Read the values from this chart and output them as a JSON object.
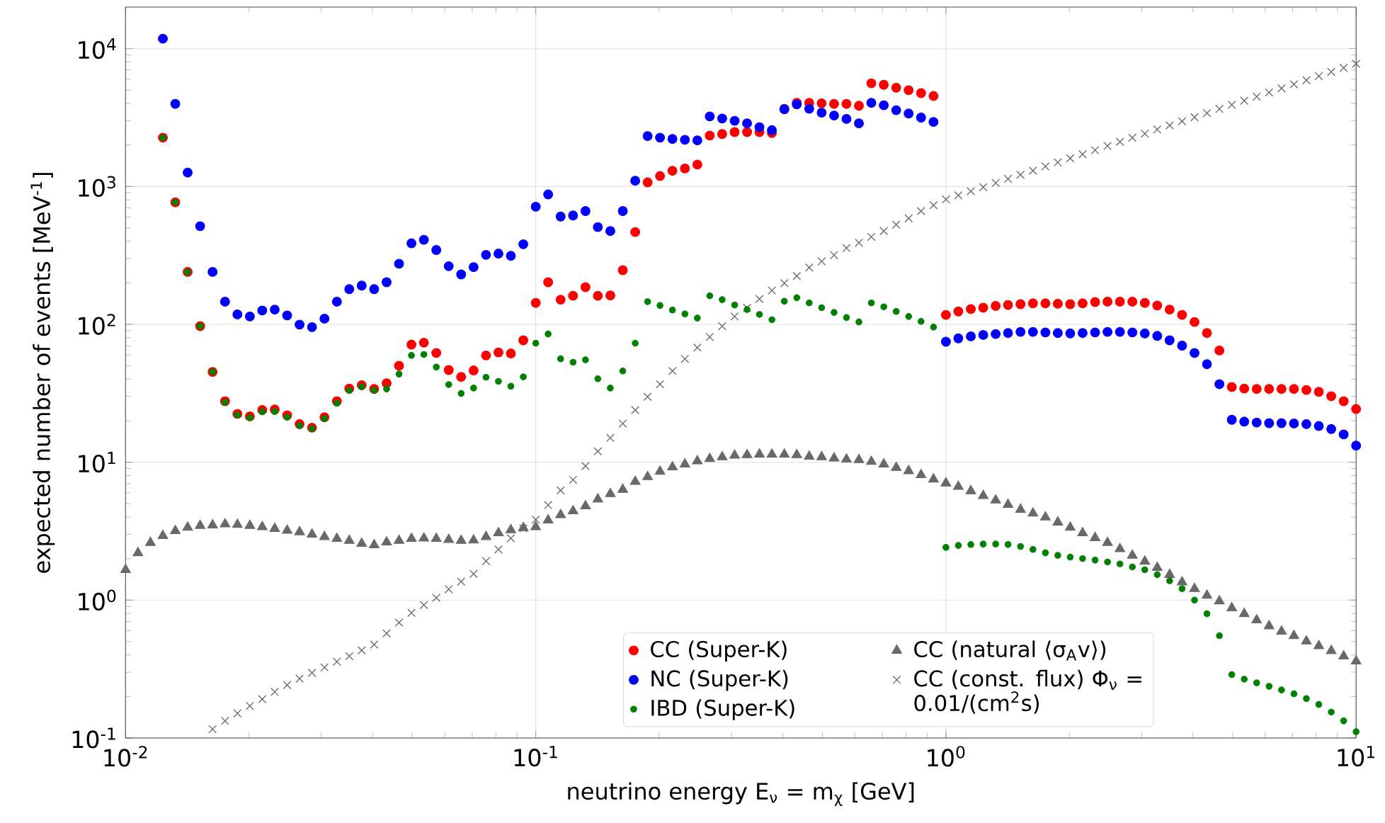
{
  "chart_data": {
    "type": "scatter",
    "xlabel": "neutrino energy E$_{ν}$ = m$_{χ}$ [GeV]",
    "ylabel": "expected number of events [MeV$^{-1}$]",
    "log": "xy",
    "grid": true,
    "legend": "bottom",
    "xlim": [
      0.01,
      10
    ],
    "ylim": [
      0.1,
      20000
    ],
    "xticks": [
      {
        "value": 0.01,
        "label": "10$^{-2}$"
      },
      {
        "value": 0.1,
        "label": "10$^{-1}$"
      },
      {
        "value": 1,
        "label": "10$^{0}$"
      },
      {
        "value": 10,
        "label": "10$^{1}$"
      }
    ],
    "yticks": [
      {
        "value": 0.1,
        "label": "10$^{-1}$"
      },
      {
        "value": 1,
        "label": "10$^{0}$"
      },
      {
        "value": 10,
        "label": "10$^{1}$"
      },
      {
        "value": 100,
        "label": "10$^{2}$"
      },
      {
        "value": 1000,
        "label": "10$^{3}$"
      },
      {
        "value": 10000,
        "label": "10$^{4}$"
      }
    ],
    "series": [
      {
        "name": "CC (Super-K)",
        "color": "#ff0000",
        "marker": "circle",
        "x": [
          0.01233,
          0.01322,
          0.01417,
          0.0152,
          0.0163,
          0.01748,
          0.01874,
          0.02009,
          0.02154,
          0.0231,
          0.02477,
          0.02656,
          0.02848,
          0.03054,
          0.03275,
          0.03511,
          0.03765,
          0.04037,
          0.04329,
          0.04642,
          0.04977,
          0.05337,
          0.05722,
          0.06136,
          0.06579,
          0.07055,
          0.07565,
          0.08111,
          0.08697,
          0.09326,
          0.1,
          0.1072,
          0.115,
          0.1233,
          0.1322,
          0.1417,
          0.152,
          0.163,
          0.1748,
          0.1874,
          0.2009,
          0.2154,
          0.231,
          0.2477,
          0.2656,
          0.2848,
          0.3054,
          0.3275,
          0.3511,
          0.3765,
          0.4037,
          0.4329,
          0.4642,
          0.4977,
          0.5337,
          0.5722,
          0.6136,
          0.6579,
          0.7055,
          0.7565,
          0.8111,
          0.8697,
          0.9326,
          1.0,
          1.072,
          1.15,
          1.233,
          1.322,
          1.417,
          1.52,
          1.63,
          1.748,
          1.874,
          2.009,
          2.154,
          2.31,
          2.477,
          2.656,
          2.848,
          3.054,
          3.275,
          3.511,
          3.765,
          4.037,
          4.329,
          4.642,
          4.977,
          5.337,
          5.722,
          6.136,
          6.579,
          7.055,
          7.565,
          8.111,
          8.697,
          9.326,
          10.0
        ],
        "values": [
          2260,
          767,
          240,
          97,
          45.2,
          27.7,
          22.4,
          21.5,
          23.9,
          24.1,
          21.9,
          18.9,
          17.8,
          21.2,
          27.7,
          34.2,
          36.2,
          34.0,
          37.4,
          50.1,
          71.3,
          73.6,
          62.0,
          46.6,
          41.6,
          46.3,
          59.5,
          62.5,
          61.5,
          76.6,
          143,
          202,
          151,
          161,
          186,
          161,
          162,
          247,
          467,
          1070,
          1190,
          1300,
          1350,
          1440,
          2340,
          2400,
          2480,
          2480,
          2480,
          2440,
          3660,
          4040,
          4040,
          4010,
          3970,
          3970,
          3850,
          5600,
          5460,
          5200,
          4990,
          4750,
          4530,
          117,
          124,
          129,
          132,
          136,
          138,
          140,
          142,
          142,
          141,
          140,
          142,
          145,
          146,
          146,
          146,
          143,
          137,
          128,
          117,
          104,
          86.5,
          64.6,
          35.1,
          34.2,
          34.0,
          34.0,
          34.0,
          34.0,
          33.4,
          32.4,
          30.1,
          27.7,
          24.3
        ]
      },
      {
        "name": "NC (Super-K)",
        "color": "#0000ff",
        "marker": "circle",
        "x": [
          0.01233,
          0.01322,
          0.01417,
          0.0152,
          0.0163,
          0.01748,
          0.01874,
          0.02009,
          0.02154,
          0.0231,
          0.02477,
          0.02656,
          0.02848,
          0.03054,
          0.03275,
          0.03511,
          0.03765,
          0.04037,
          0.04329,
          0.04642,
          0.04977,
          0.05337,
          0.05722,
          0.06136,
          0.06579,
          0.07055,
          0.07565,
          0.08111,
          0.08697,
          0.09326,
          0.1,
          0.1072,
          0.115,
          0.1233,
          0.1322,
          0.1417,
          0.152,
          0.163,
          0.1748,
          0.1874,
          0.2009,
          0.2154,
          0.231,
          0.2477,
          0.2656,
          0.2848,
          0.3054,
          0.3275,
          0.3511,
          0.3765,
          0.4037,
          0.4329,
          0.4642,
          0.4977,
          0.5337,
          0.5722,
          0.6136,
          0.6579,
          0.7055,
          0.7565,
          0.8111,
          0.8697,
          0.9326,
          1.0,
          1.072,
          1.15,
          1.233,
          1.322,
          1.417,
          1.52,
          1.63,
          1.748,
          1.874,
          2.009,
          2.154,
          2.31,
          2.477,
          2.656,
          2.848,
          3.054,
          3.275,
          3.511,
          3.765,
          4.037,
          4.329,
          4.642,
          4.977,
          5.337,
          5.722,
          6.136,
          6.579,
          7.055,
          7.565,
          8.111,
          8.697,
          9.326,
          10.0
        ],
        "values": [
          11800,
          3970,
          1260,
          515,
          240,
          146,
          118,
          114,
          126,
          128,
          116,
          99.5,
          95.5,
          110,
          146,
          180,
          191,
          180,
          202,
          275,
          387,
          410,
          346,
          264,
          230,
          260,
          319,
          326,
          314,
          381,
          713,
          875,
          605,
          616,
          663,
          507,
          475,
          663,
          1100,
          2320,
          2260,
          2210,
          2180,
          2160,
          3220,
          3110,
          2990,
          2870,
          2690,
          2560,
          3630,
          3940,
          3660,
          3430,
          3270,
          3090,
          2870,
          4040,
          3880,
          3570,
          3380,
          3160,
          2940,
          74.8,
          79.1,
          81.8,
          83.8,
          85.1,
          86.5,
          88.1,
          88.1,
          87.3,
          86.5,
          85.9,
          86.5,
          87.3,
          88.1,
          88.1,
          87.3,
          85.9,
          82.4,
          76.6,
          70.1,
          62.0,
          51.4,
          36.8,
          20.3,
          19.7,
          19.4,
          19.2,
          19.2,
          19.1,
          18.9,
          18.3,
          17.4,
          15.9,
          13.2
        ]
      },
      {
        "name": "IBD (Super-K)",
        "color": "#008000",
        "marker": "circle",
        "x": [
          0.01233,
          0.01322,
          0.01417,
          0.0152,
          0.0163,
          0.01748,
          0.01874,
          0.02009,
          0.02154,
          0.0231,
          0.02477,
          0.02656,
          0.02848,
          0.03054,
          0.03275,
          0.03511,
          0.03765,
          0.04037,
          0.04329,
          0.04642,
          0.04977,
          0.05337,
          0.05722,
          0.06136,
          0.06579,
          0.07055,
          0.07565,
          0.08111,
          0.08697,
          0.09326,
          0.1,
          0.1072,
          0.115,
          0.1233,
          0.1322,
          0.1417,
          0.152,
          0.163,
          0.1748,
          0.1874,
          0.2009,
          0.2154,
          0.231,
          0.2477,
          0.2656,
          0.2848,
          0.3054,
          0.3275,
          0.3511,
          0.3765,
          0.4037,
          0.4329,
          0.4642,
          0.4977,
          0.5337,
          0.5722,
          0.6136,
          0.6579,
          0.7055,
          0.7565,
          0.8111,
          0.8697,
          0.9326,
          1.0,
          1.072,
          1.15,
          1.233,
          1.322,
          1.417,
          1.52,
          1.63,
          1.748,
          1.874,
          2.009,
          2.154,
          2.31,
          2.477,
          2.656,
          2.848,
          3.054,
          3.275,
          3.511,
          3.765,
          4.037,
          4.329,
          4.642,
          4.977,
          5.337,
          5.722,
          6.136,
          6.579,
          7.055,
          7.565,
          8.111,
          8.697,
          9.326,
          10.0
        ],
        "values": [
          2260,
          767,
          240,
          97,
          45.2,
          27.2,
          22.0,
          21.0,
          23.2,
          23.3,
          21.2,
          18.4,
          17.5,
          20.7,
          26.8,
          33.1,
          35.3,
          33.1,
          34.0,
          43.6,
          59.5,
          60.5,
          49.0,
          36.6,
          31.5,
          34.5,
          41.3,
          38.6,
          35.6,
          41.6,
          73.0,
          85.1,
          56.2,
          53.1,
          55.3,
          40.3,
          34.5,
          45.9,
          73.0,
          146,
          137,
          127,
          119,
          111,
          161,
          151,
          138,
          128,
          118,
          108,
          147,
          156,
          143,
          132,
          122,
          112,
          104,
          143,
          134,
          124,
          114,
          105,
          95.5,
          2.41,
          2.49,
          2.53,
          2.55,
          2.55,
          2.53,
          2.45,
          2.33,
          2.2,
          2.11,
          2.05,
          2.0,
          1.95,
          1.89,
          1.83,
          1.74,
          1.66,
          1.53,
          1.38,
          1.21,
          1.0,
          0.796,
          0.552,
          0.288,
          0.267,
          0.251,
          0.237,
          0.223,
          0.209,
          0.193,
          0.175,
          0.154,
          0.133,
          0.111
        ]
      },
      {
        "name": "CC (natural ⟨σ$_{A}$v⟩)",
        "color": "#696969",
        "marker": "triangle",
        "x": [
          0.01,
          0.01072,
          0.0115,
          0.01233,
          0.01322,
          0.01417,
          0.0152,
          0.0163,
          0.01748,
          0.01874,
          0.02009,
          0.02154,
          0.0231,
          0.02477,
          0.02656,
          0.02848,
          0.03054,
          0.03275,
          0.03511,
          0.03765,
          0.04037,
          0.04329,
          0.04642,
          0.04977,
          0.05337,
          0.05722,
          0.06136,
          0.06579,
          0.07055,
          0.07565,
          0.08111,
          0.08697,
          0.09326,
          0.1,
          0.1072,
          0.115,
          0.1233,
          0.1322,
          0.1417,
          0.152,
          0.163,
          0.1748,
          0.1874,
          0.2009,
          0.2154,
          0.231,
          0.2477,
          0.2656,
          0.2848,
          0.3054,
          0.3275,
          0.3511,
          0.3765,
          0.4037,
          0.4329,
          0.4642,
          0.4977,
          0.5337,
          0.5722,
          0.6136,
          0.6579,
          0.7055,
          0.7565,
          0.8111,
          0.8697,
          0.9326,
          1.0,
          1.072,
          1.15,
          1.233,
          1.322,
          1.417,
          1.52,
          1.63,
          1.748,
          1.874,
          2.009,
          2.154,
          2.31,
          2.477,
          2.656,
          2.848,
          3.054,
          3.275,
          3.511,
          3.765,
          4.037,
          4.329,
          4.642,
          4.977,
          5.337,
          5.722,
          6.136,
          6.579,
          7.055,
          7.565,
          8.111,
          8.697,
          9.326,
          10.0
        ],
        "values": [
          1.66,
          2.2,
          2.61,
          2.93,
          3.18,
          3.36,
          3.47,
          3.5,
          3.56,
          3.53,
          3.47,
          3.39,
          3.3,
          3.2,
          3.12,
          3.0,
          2.88,
          2.79,
          2.7,
          2.57,
          2.51,
          2.63,
          2.7,
          2.79,
          2.81,
          2.79,
          2.74,
          2.7,
          2.72,
          2.88,
          3.07,
          3.23,
          3.34,
          3.39,
          3.8,
          4.15,
          4.43,
          4.81,
          5.39,
          5.9,
          6.34,
          7.23,
          7.84,
          8.57,
          9.22,
          9.68,
          10.2,
          10.6,
          10.9,
          11.2,
          11.3,
          11.4,
          11.4,
          11.4,
          11.3,
          11.0,
          10.9,
          10.7,
          10.5,
          10.4,
          10.1,
          9.68,
          9.14,
          8.65,
          8.09,
          7.53,
          7.05,
          6.66,
          6.19,
          5.71,
          5.3,
          4.93,
          4.54,
          4.26,
          3.99,
          3.67,
          3.36,
          3.07,
          2.83,
          2.61,
          2.35,
          2.11,
          1.91,
          1.72,
          1.53,
          1.35,
          1.21,
          1.08,
          0.984,
          0.877,
          0.796,
          0.716,
          0.649,
          0.593,
          0.551,
          0.504,
          0.465,
          0.429,
          0.392,
          0.361
        ]
      },
      {
        "name": "CC (const. flux) Φ$_{ν}$ = 0.01/(cm$^{2}$s)",
        "color": "#696969",
        "marker": "cross",
        "x": [
          0.0163,
          0.01748,
          0.01874,
          0.02009,
          0.02154,
          0.0231,
          0.02477,
          0.02656,
          0.02848,
          0.03054,
          0.03275,
          0.03511,
          0.03765,
          0.04037,
          0.04329,
          0.04642,
          0.04977,
          0.05337,
          0.05722,
          0.06136,
          0.06579,
          0.07055,
          0.07565,
          0.08111,
          0.08697,
          0.09326,
          0.1,
          0.1072,
          0.115,
          0.1233,
          0.1322,
          0.1417,
          0.152,
          0.163,
          0.1748,
          0.1874,
          0.2009,
          0.2154,
          0.231,
          0.2477,
          0.2656,
          0.2848,
          0.3054,
          0.3275,
          0.3511,
          0.3765,
          0.4037,
          0.4329,
          0.4642,
          0.4977,
          0.5337,
          0.5722,
          0.6136,
          0.6579,
          0.7055,
          0.7565,
          0.8111,
          0.8697,
          0.9326,
          1.0,
          1.072,
          1.15,
          1.233,
          1.322,
          1.417,
          1.52,
          1.63,
          1.748,
          1.874,
          2.009,
          2.154,
          2.31,
          2.477,
          2.656,
          2.848,
          3.054,
          3.275,
          3.511,
          3.765,
          4.037,
          4.329,
          4.642,
          4.977,
          5.337,
          5.722,
          6.136,
          6.579,
          7.055,
          7.565,
          8.111,
          8.697,
          9.326,
          10.0
        ],
        "values": [
          0.116,
          0.133,
          0.151,
          0.171,
          0.191,
          0.216,
          0.242,
          0.269,
          0.297,
          0.325,
          0.358,
          0.392,
          0.432,
          0.476,
          0.574,
          0.687,
          0.809,
          0.921,
          1.04,
          1.2,
          1.36,
          1.55,
          1.92,
          2.33,
          2.81,
          3.31,
          3.83,
          4.89,
          6.24,
          7.46,
          9.38,
          12.0,
          15.0,
          19.1,
          23.9,
          29.8,
          36.8,
          45.9,
          56.2,
          67.8,
          81.1,
          97.0,
          114,
          132,
          153,
          176,
          199,
          224,
          258,
          286,
          318,
          357,
          391,
          431,
          475,
          528,
          587,
          663,
          731,
          805,
          862,
          924,
          989,
          1060,
          1135,
          1216,
          1302,
          1395,
          1494,
          1600,
          1714,
          1836,
          1966,
          2106,
          2256,
          2416,
          2588,
          2772,
          2969,
          3180,
          3406,
          3648,
          3908,
          4185,
          4483,
          4802,
          5143,
          5509,
          5900,
          6320,
          6770,
          7251,
          7766
        ]
      }
    ]
  }
}
